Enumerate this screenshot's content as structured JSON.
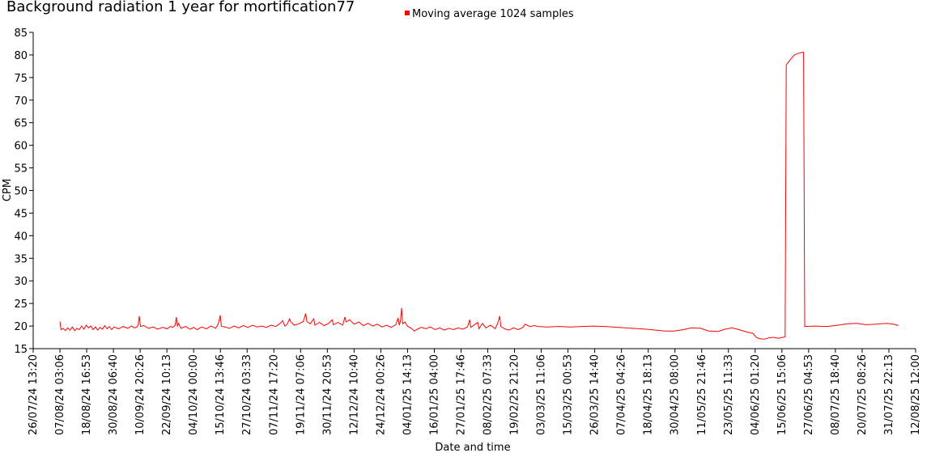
{
  "chart_data": {
    "type": "line",
    "title": "Background radiation 1 year for mortification77",
    "xlabel": "Date and time",
    "ylabel": "CPM",
    "ylim": [
      15,
      85
    ],
    "yticks": [
      15,
      20,
      25,
      30,
      35,
      40,
      45,
      50,
      55,
      60,
      65,
      70,
      75,
      80,
      85
    ],
    "grid": false,
    "legend_position": "top-center",
    "xticks": [
      "26/07/24 13:20",
      "07/08/24 03:06",
      "18/08/24 16:53",
      "30/08/24 06:40",
      "10/09/24 20:26",
      "22/09/24 10:13",
      "04/10/24 00:00",
      "15/10/24 13:46",
      "27/10/24 03:33",
      "07/11/24 17:20",
      "19/11/24 07:06",
      "30/11/24 20:53",
      "12/12/24 10:40",
      "24/12/24 00:26",
      "04/01/25 14:13",
      "16/01/25 04:00",
      "27/01/25 17:46",
      "08/02/25 07:33",
      "19/02/25 21:20",
      "03/03/25 11:06",
      "15/03/25 00:53",
      "26/03/25 14:40",
      "07/04/25 04:26",
      "18/04/25 18:13",
      "30/04/25 08:00",
      "11/05/25 21:46",
      "23/05/25 11:33",
      "04/06/25 01:20",
      "15/06/25 15:06",
      "27/06/25 04:53",
      "08/07/25 18:40",
      "20/07/25 08:26",
      "31/07/25 22:13",
      "12/08/25 12:00"
    ],
    "series": [
      {
        "name": "Moving average 1024 samples",
        "color": "#ff0000",
        "points": [
          [
            "07/08/24 03:06",
            21.0
          ],
          [
            "07/08/24 15:00",
            19.2
          ],
          [
            "08/08/24 12:00",
            19.5
          ],
          [
            "09/08/24 12:00",
            19.0
          ],
          [
            "10/08/24 12:00",
            19.6
          ],
          [
            "11/08/24 12:00",
            19.1
          ],
          [
            "12/08/24 12:00",
            19.8
          ],
          [
            "13/08/24 12:00",
            19.0
          ],
          [
            "14/08/24 12:00",
            19.5
          ],
          [
            "15/08/24 12:00",
            19.2
          ],
          [
            "16/08/24 12:00",
            20.0
          ],
          [
            "17/08/24 12:00",
            19.3
          ],
          [
            "18/08/24 12:00",
            20.2
          ],
          [
            "19/08/24 12:00",
            19.6
          ],
          [
            "20/08/24 12:00",
            20.0
          ],
          [
            "21/08/24 12:00",
            19.2
          ],
          [
            "22/08/24 12:00",
            19.8
          ],
          [
            "23/08/24 12:00",
            19.1
          ],
          [
            "24/08/24 12:00",
            19.7
          ],
          [
            "25/08/24 12:00",
            19.3
          ],
          [
            "26/08/24 12:00",
            20.1
          ],
          [
            "27/08/24 12:00",
            19.4
          ],
          [
            "28/08/24 12:00",
            19.9
          ],
          [
            "29/08/24 12:00",
            19.2
          ],
          [
            "30/08/24 12:00",
            19.8
          ],
          [
            "01/09/24 12:00",
            19.4
          ],
          [
            "03/09/24 12:00",
            19.9
          ],
          [
            "05/09/24 12:00",
            19.5
          ],
          [
            "07/09/24 00:00",
            20.0
          ],
          [
            "08/09/24 12:00",
            19.6
          ],
          [
            "09/09/24 12:00",
            19.8
          ],
          [
            "10/09/24 00:00",
            20.3
          ],
          [
            "10/09/24 12:00",
            22.2
          ],
          [
            "11/09/24 00:00",
            19.9
          ],
          [
            "12/09/24 12:00",
            20.1
          ],
          [
            "14/09/24 12:00",
            19.5
          ],
          [
            "16/09/24 12:00",
            19.8
          ],
          [
            "18/09/24 12:00",
            19.3
          ],
          [
            "20/09/24 12:00",
            19.7
          ],
          [
            "22/09/24 12:00",
            19.4
          ],
          [
            "24/09/24 00:00",
            19.9
          ],
          [
            "25/09/24 00:00",
            19.7
          ],
          [
            "26/09/24 00:00",
            20.2
          ],
          [
            "26/09/24 12:00",
            22.0
          ],
          [
            "27/09/24 00:00",
            20.0
          ],
          [
            "27/09/24 12:00",
            20.6
          ],
          [
            "28/09/24 12:00",
            19.5
          ],
          [
            "30/09/24 12:00",
            19.9
          ],
          [
            "02/10/24 12:00",
            19.3
          ],
          [
            "04/10/24 00:00",
            19.7
          ],
          [
            "05/10/24 12:00",
            19.2
          ],
          [
            "07/10/24 12:00",
            19.8
          ],
          [
            "09/10/24 12:00",
            19.4
          ],
          [
            "11/10/24 12:00",
            20.0
          ],
          [
            "13/10/24 12:00",
            19.5
          ],
          [
            "14/10/24 12:00",
            20.3
          ],
          [
            "15/10/24 00:00",
            21.2
          ],
          [
            "15/10/24 12:00",
            22.4
          ],
          [
            "16/10/24 00:00",
            20.0
          ],
          [
            "17/10/24 12:00",
            19.8
          ],
          [
            "19/10/24 12:00",
            19.5
          ],
          [
            "21/10/24 12:00",
            20.0
          ],
          [
            "23/10/24 12:00",
            19.6
          ],
          [
            "25/10/24 12:00",
            20.1
          ],
          [
            "27/10/24 12:00",
            19.7
          ],
          [
            "29/10/24 12:00",
            20.2
          ],
          [
            "31/10/24 12:00",
            19.8
          ],
          [
            "02/11/24 12:00",
            20.0
          ],
          [
            "04/11/24 12:00",
            19.7
          ],
          [
            "06/11/24 12:00",
            20.2
          ],
          [
            "08/11/24 12:00",
            19.9
          ],
          [
            "10/11/24 12:00",
            20.6
          ],
          [
            "11/11/24 12:00",
            21.2
          ],
          [
            "12/11/24 12:00",
            20.0
          ],
          [
            "13/11/24 12:00",
            20.4
          ],
          [
            "14/11/24 12:00",
            21.6
          ],
          [
            "15/11/24 00:00",
            21.0
          ],
          [
            "16/11/24 12:00",
            20.2
          ],
          [
            "18/11/24 12:00",
            20.5
          ],
          [
            "20/11/24 12:00",
            21.0
          ],
          [
            "21/11/24 12:00",
            22.8
          ],
          [
            "22/11/24 00:00",
            21.0
          ],
          [
            "23/11/24 12:00",
            20.5
          ],
          [
            "25/11/24 00:00",
            21.6
          ],
          [
            "25/11/24 12:00",
            20.2
          ],
          [
            "27/11/24 12:00",
            20.8
          ],
          [
            "29/11/24 12:00",
            20.1
          ],
          [
            "01/12/24 12:00",
            20.6
          ],
          [
            "03/12/24 00:00",
            21.4
          ],
          [
            "03/12/24 12:00",
            20.3
          ],
          [
            "05/12/24 12:00",
            20.8
          ],
          [
            "07/12/24 12:00",
            20.2
          ],
          [
            "08/12/24 12:00",
            22.0
          ],
          [
            "09/12/24 00:00",
            20.9
          ],
          [
            "10/12/24 12:00",
            21.4
          ],
          [
            "12/12/24 12:00",
            20.4
          ],
          [
            "14/12/24 12:00",
            20.9
          ],
          [
            "16/12/24 12:00",
            20.1
          ],
          [
            "18/12/24 12:00",
            20.6
          ],
          [
            "20/12/24 12:00",
            20.0
          ],
          [
            "22/12/24 12:00",
            20.4
          ],
          [
            "24/12/24 12:00",
            19.8
          ],
          [
            "26/12/24 12:00",
            20.2
          ],
          [
            "28/12/24 12:00",
            19.7
          ],
          [
            "30/12/24 12:00",
            20.3
          ],
          [
            "31/12/24 12:00",
            21.8
          ],
          [
            "01/01/25 00:00",
            20.2
          ],
          [
            "01/01/25 12:00",
            21.0
          ],
          [
            "02/01/25 00:00",
            24.0
          ],
          [
            "02/01/25 12:00",
            20.5
          ],
          [
            "03/01/25 12:00",
            20.9
          ],
          [
            "04/01/25 12:00",
            20.0
          ],
          [
            "06/01/25 12:00",
            19.4
          ],
          [
            "07/01/25 12:00",
            18.9
          ],
          [
            "08/01/25 12:00",
            19.2
          ],
          [
            "10/01/25 12:00",
            19.7
          ],
          [
            "12/01/25 12:00",
            19.4
          ],
          [
            "14/01/25 12:00",
            19.8
          ],
          [
            "16/01/25 12:00",
            19.2
          ],
          [
            "18/01/25 12:00",
            19.6
          ],
          [
            "20/01/25 12:00",
            19.1
          ],
          [
            "22/01/25 12:00",
            19.5
          ],
          [
            "24/01/25 12:00",
            19.2
          ],
          [
            "26/01/25 12:00",
            19.6
          ],
          [
            "28/01/25 12:00",
            19.3
          ],
          [
            "30/01/25 12:00",
            19.8
          ],
          [
            "31/01/25 12:00",
            21.4
          ],
          [
            "01/02/25 00:00",
            19.7
          ],
          [
            "02/02/25 12:00",
            20.3
          ],
          [
            "04/02/25 00:00",
            20.8
          ],
          [
            "04/02/25 12:00",
            19.4
          ],
          [
            "06/02/25 00:00",
            20.6
          ],
          [
            "07/02/25 12:00",
            19.6
          ],
          [
            "09/02/25 12:00",
            20.2
          ],
          [
            "11/02/25 12:00",
            19.4
          ],
          [
            "12/02/25 12:00",
            20.5
          ],
          [
            "13/02/25 12:00",
            22.2
          ],
          [
            "14/02/25 00:00",
            19.9
          ],
          [
            "15/02/25 12:00",
            19.4
          ],
          [
            "17/02/25 12:00",
            19.1
          ],
          [
            "19/02/25 12:00",
            19.6
          ],
          [
            "21/02/25 12:00",
            19.2
          ],
          [
            "23/02/25 12:00",
            19.7
          ],
          [
            "24/02/25 12:00",
            20.4
          ],
          [
            "26/02/25 12:00",
            19.9
          ],
          [
            "28/02/25 12:00",
            20.1
          ],
          [
            "02/03/25 00:00",
            19.9
          ],
          [
            "06/03/25 00:00",
            19.8
          ],
          [
            "11/03/25 00:00",
            19.9
          ],
          [
            "16/03/25 00:00",
            19.8
          ],
          [
            "21/03/25 00:00",
            19.9
          ],
          [
            "26/03/25 00:00",
            20.0
          ],
          [
            "31/03/25 00:00",
            19.9
          ],
          [
            "06/04/25 00:00",
            19.7
          ],
          [
            "12/04/25 00:00",
            19.5
          ],
          [
            "18/04/25 00:00",
            19.3
          ],
          [
            "22/04/25 00:00",
            19.1
          ],
          [
            "26/04/25 00:00",
            18.9
          ],
          [
            "30/04/25 00:00",
            18.9
          ],
          [
            "04/05/25 00:00",
            19.2
          ],
          [
            "07/05/25 12:00",
            19.6
          ],
          [
            "11/05/25 12:00",
            19.5
          ],
          [
            "15/05/25 00:00",
            18.9
          ],
          [
            "19/05/25 00:00",
            18.8
          ],
          [
            "22/05/25 00:00",
            19.3
          ],
          [
            "25/05/25 00:00",
            19.6
          ],
          [
            "28/05/25 00:00",
            19.2
          ],
          [
            "01/06/25 00:00",
            18.6
          ],
          [
            "03/06/25 00:00",
            18.4
          ],
          [
            "04/06/25 12:00",
            17.5
          ],
          [
            "06/06/25 00:00",
            17.2
          ],
          [
            "08/06/25 00:00",
            17.1
          ],
          [
            "10/06/25 00:00",
            17.4
          ],
          [
            "12/06/25 00:00",
            17.5
          ],
          [
            "14/06/25 00:00",
            17.3
          ],
          [
            "16/06/25 00:00",
            17.5
          ],
          [
            "17/06/25 00:00",
            17.6
          ],
          [
            "17/06/25 12:00",
            77.8
          ],
          [
            "19/06/25 00:00",
            78.8
          ],
          [
            "21/06/25 00:00",
            80.0
          ],
          [
            "23/06/25 00:00",
            80.4
          ],
          [
            "24/06/25 12:00",
            80.6
          ],
          [
            "25/06/25 00:00",
            80.6
          ],
          [
            "25/06/25 12:00",
            19.9
          ],
          [
            "30/06/25 00:00",
            20.0
          ],
          [
            "05/07/25 00:00",
            19.9
          ],
          [
            "10/07/25 00:00",
            20.2
          ],
          [
            "14/07/25 00:00",
            20.5
          ],
          [
            "18/07/25 00:00",
            20.6
          ],
          [
            "22/07/25 00:00",
            20.3
          ],
          [
            "26/07/25 00:00",
            20.4
          ],
          [
            "31/07/25 00:00",
            20.6
          ],
          [
            "03/08/25 00:00",
            20.4
          ],
          [
            "05/08/25 00:00",
            20.1
          ]
        ]
      }
    ]
  }
}
